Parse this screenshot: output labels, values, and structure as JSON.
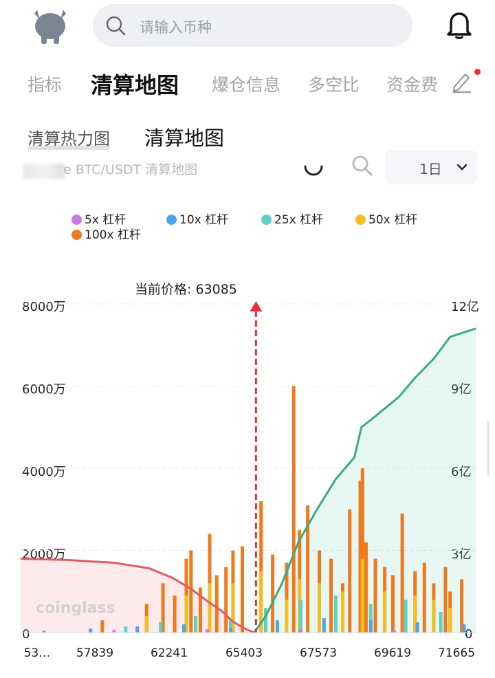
{
  "header": {
    "search_placeholder": "请输入币种"
  },
  "tabs": [
    "指标",
    "清算地图",
    "爆仓信息",
    "多空比",
    "资金费"
  ],
  "active_tab_index": 1,
  "subtabs": [
    "清算热力图",
    "清算地图"
  ],
  "active_subtab_index": 1,
  "chart_header": {
    "title": "e BTC/USDT 清算地图",
    "period": "1日"
  },
  "colors": {
    "accent_red": "#e8303a",
    "lev5": "#c77be8",
    "lev10": "#4fa3e8",
    "lev25": "#5fd0c6",
    "lev50": "#f5bd1f",
    "lev100": "#ef7a1c",
    "short_line": "#e05c66",
    "long_line": "#3aaa86"
  },
  "chart_data": {
    "type": "bar",
    "title": "",
    "current_price_label": "当前价格: 63085",
    "current_price": 63085,
    "legend": [
      "5x 杠杆",
      "10x 杠杆",
      "25x 杠杆",
      "50x 杠杆",
      "100x 杠杆"
    ],
    "left_axis": {
      "ticks": [
        "0",
        "2000万",
        "4000万",
        "6000万",
        "8000万"
      ],
      "ylim": [
        0,
        80000000
      ]
    },
    "right_axis": {
      "ticks": [
        "0",
        "3亿",
        "6亿",
        "9亿",
        "12亿"
      ],
      "ylim": [
        0,
        1200000000
      ]
    },
    "x_ticks": [
      "53…",
      "57839",
      "62241",
      "65403",
      "67573",
      "69619",
      "71665"
    ],
    "x_domain": [
      53000,
      72500
    ],
    "series": [
      {
        "name": "100x 杠杆",
        "x": [
          56500,
          58400,
          59100,
          59600,
          60100,
          60300,
          60700,
          61100,
          61400,
          61800,
          62100,
          62500,
          63300,
          63800,
          64400,
          64700,
          64950,
          65300,
          65800,
          66300,
          66800,
          67100,
          67550,
          67650,
          67800,
          68200,
          68600,
          68950,
          69350,
          69900,
          70300,
          70700,
          71200,
          71400,
          71900
        ],
        "values": [
          3000000,
          7000000,
          12000000,
          9000000,
          18000000,
          20000000,
          11000000,
          24000000,
          14000000,
          16000000,
          20000000,
          21000000,
          32000000,
          19000000,
          17000000,
          60000000,
          25000000,
          31000000,
          20000000,
          18000000,
          12000000,
          30000000,
          37000000,
          40000000,
          22000000,
          18000000,
          16000000,
          14000000,
          29000000,
          15000000,
          17000000,
          12000000,
          16000000,
          10000000,
          13000000
        ]
      },
      {
        "name": "50x 杠杆",
        "x": [
          58400,
          60100,
          61100,
          62100,
          63300,
          64400,
          64950,
          65800,
          66800,
          67650,
          68600,
          69900,
          70700,
          71400
        ],
        "values": [
          4000000,
          9000000,
          12000000,
          12000000,
          15000000,
          8000000,
          13000000,
          12000000,
          10000000,
          18000000,
          10000000,
          9000000,
          8000000,
          6000000
        ]
      },
      {
        "name": "25x 杠杆",
        "x": [
          57500,
          59000,
          60500,
          62000,
          63500,
          65000,
          66500,
          68000,
          69500,
          71000
        ],
        "values": [
          1500000,
          2500000,
          4000000,
          3000000,
          6000000,
          8000000,
          9000000,
          7000000,
          8000000,
          5000000
        ]
      },
      {
        "name": "10x 杠杆",
        "x": [
          56000,
          58000,
          60000,
          62000,
          64000,
          66000,
          68000,
          70000,
          72000
        ],
        "values": [
          1000000,
          1500000,
          2000000,
          1200000,
          3000000,
          3500000,
          3000000,
          2500000,
          2000000
        ]
      },
      {
        "name": "5x 杠杆",
        "x": [
          54000,
          57000,
          61000,
          65000,
          69000
        ],
        "values": [
          500000,
          600000,
          800000,
          700000,
          600000
        ]
      }
    ],
    "cumulative_short": {
      "x": [
        53000,
        55000,
        57000,
        58500,
        59500,
        60300,
        61000,
        61600,
        62100,
        62600,
        63000
      ],
      "values": [
        270000000,
        265000000,
        255000000,
        235000000,
        200000000,
        160000000,
        115000000,
        80000000,
        40000000,
        15000000,
        0
      ]
    },
    "cumulative_long": {
      "x": [
        63000,
        63500,
        64200,
        64900,
        65700,
        66500,
        67300,
        67600,
        68200,
        69200,
        69900,
        70700,
        71400,
        72500
      ],
      "values": [
        0,
        60000000,
        180000000,
        330000000,
        450000000,
        560000000,
        640000000,
        750000000,
        790000000,
        860000000,
        930000000,
        1000000000,
        1080000000,
        1110000000
      ]
    }
  }
}
